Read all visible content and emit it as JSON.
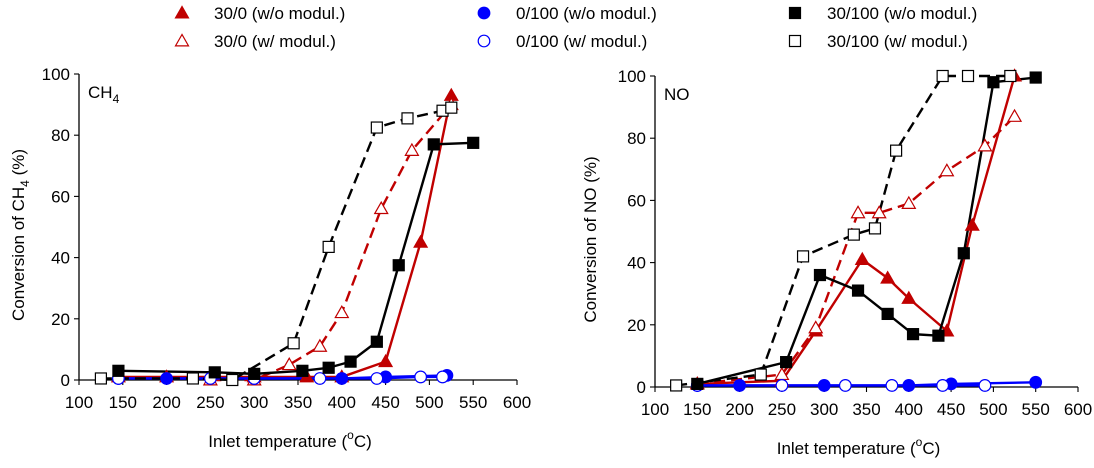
{
  "legend": {
    "items": [
      {
        "label": "30/0 (w/o modul.)",
        "marker": "triangle",
        "filled": true,
        "color": "#c00000"
      },
      {
        "label": "0/100 (w/o modul.)",
        "marker": "circle",
        "filled": true,
        "color": "#0000ff"
      },
      {
        "label": "30/100 (w/o modul.)",
        "marker": "square",
        "filled": true,
        "color": "#000000"
      },
      {
        "label": "30/0 (w/ modul.)",
        "marker": "triangle",
        "filled": false,
        "color": "#c00000"
      },
      {
        "label": "0/100 (w/ modul.)",
        "marker": "circle",
        "filled": false,
        "color": "#0000ff"
      },
      {
        "label": "30/100 (w/ modul.)",
        "marker": "square",
        "filled": false,
        "color": "#000000"
      }
    ]
  },
  "chart_data": [
    {
      "type": "line",
      "corner_label": {
        "main": "CH",
        "sub": "4"
      },
      "xlabel": {
        "main": "Inlet temperature (",
        "sup": "o",
        "tail": "C)"
      },
      "ylabel": {
        "main": "Conversion of CH",
        "sub": "4",
        "tail": " (%)"
      },
      "xlim": [
        100,
        600
      ],
      "ylim": [
        0,
        100
      ],
      "xticks": [
        "100",
        "150",
        "200",
        "250",
        "300",
        "350",
        "400",
        "450",
        "500",
        "550",
        "600"
      ],
      "yticks": [
        "0",
        "20",
        "40",
        "60",
        "80",
        "100"
      ],
      "grid": false,
      "series": [
        {
          "key": "a",
          "marker": "triangle",
          "filled": true,
          "color": "#c00000",
          "dashed": false,
          "x": [
            145,
            200,
            300,
            360,
            400,
            450,
            490,
            525
          ],
          "y": [
            1,
            1,
            1,
            1,
            1,
            6,
            45,
            93
          ]
        },
        {
          "key": "b",
          "marker": "triangle",
          "filled": false,
          "color": "#c00000",
          "dashed": true,
          "x": [
            250,
            300,
            340,
            375,
            400,
            445,
            480,
            525
          ],
          "y": [
            0,
            0,
            5,
            11,
            22,
            56,
            75,
            90
          ]
        },
        {
          "key": "c",
          "marker": "circle",
          "filled": true,
          "color": "#0000ff",
          "dashed": false,
          "x": [
            145,
            200,
            300,
            400,
            450,
            520
          ],
          "y": [
            0.5,
            0.5,
            0.5,
            0.5,
            1,
            1.5
          ]
        },
        {
          "key": "d",
          "marker": "circle",
          "filled": false,
          "color": "#0000ff",
          "dashed": false,
          "x": [
            145,
            250,
            300,
            375,
            440,
            490,
            515
          ],
          "y": [
            0.5,
            0.5,
            0.5,
            0.5,
            0.5,
            1,
            1
          ]
        },
        {
          "key": "e",
          "marker": "square",
          "filled": true,
          "color": "#000000",
          "dashed": false,
          "x": [
            145,
            255,
            300,
            355,
            385,
            410,
            440,
            465,
            505,
            550
          ],
          "y": [
            3,
            2.5,
            2,
            3,
            4,
            6,
            12.5,
            37.5,
            77,
            77.5
          ]
        },
        {
          "key": "f",
          "marker": "square",
          "filled": false,
          "color": "#000000",
          "dashed": true,
          "x": [
            125,
            230,
            275,
            345,
            385,
            440,
            475,
            515,
            525
          ],
          "y": [
            0.5,
            0.5,
            0,
            12,
            43.5,
            82.5,
            85.5,
            88,
            89
          ]
        }
      ]
    },
    {
      "type": "line",
      "corner_label": {
        "main": "NO",
        "sub": ""
      },
      "xlabel": {
        "main": "Inlet temperature (",
        "sup": "o",
        "tail": "C)"
      },
      "ylabel": {
        "main": "Conversion of NO (%)",
        "sub": "",
        "tail": ""
      },
      "xlim": [
        100,
        600
      ],
      "ylim": [
        0,
        100
      ],
      "xticks": [
        "100",
        "150",
        "200",
        "250",
        "300",
        "350",
        "400",
        "450",
        "500",
        "550",
        "600"
      ],
      "yticks": [
        "0",
        "20",
        "40",
        "60",
        "80",
        "100"
      ],
      "grid": false,
      "series": [
        {
          "key": "a",
          "marker": "triangle",
          "filled": true,
          "color": "#c00000",
          "dashed": false,
          "x": [
            150,
            250,
            290,
            345,
            375,
            400,
            445,
            475,
            525
          ],
          "y": [
            1,
            2,
            18,
            41,
            35,
            28.5,
            18,
            52,
            100
          ]
        },
        {
          "key": "b",
          "marker": "triangle",
          "filled": false,
          "color": "#c00000",
          "dashed": true,
          "x": [
            150,
            250,
            290,
            340,
            365,
            400,
            445,
            490,
            525
          ],
          "y": [
            1,
            4,
            19,
            56,
            56,
            59,
            69.5,
            77.5,
            87
          ]
        },
        {
          "key": "c",
          "marker": "circle",
          "filled": true,
          "color": "#0000ff",
          "dashed": false,
          "x": [
            150,
            200,
            300,
            400,
            450,
            550
          ],
          "y": [
            0.5,
            0.5,
            0.5,
            0.5,
            1,
            1.5
          ]
        },
        {
          "key": "d",
          "marker": "circle",
          "filled": false,
          "color": "#0000ff",
          "dashed": false,
          "x": [
            150,
            250,
            325,
            380,
            440,
            490
          ],
          "y": [
            0.5,
            0.5,
            0.5,
            0.5,
            0.5,
            0.5
          ]
        },
        {
          "key": "e",
          "marker": "square",
          "filled": true,
          "color": "#000000",
          "dashed": false,
          "x": [
            150,
            255,
            295,
            340,
            375,
            405,
            435,
            465,
            500,
            550
          ],
          "y": [
            1,
            8,
            36,
            31,
            23.5,
            17,
            16.5,
            43,
            98,
            99.5
          ]
        },
        {
          "key": "f",
          "marker": "square",
          "filled": false,
          "color": "#000000",
          "dashed": true,
          "x": [
            125,
            225,
            275,
            335,
            360,
            385,
            440,
            470,
            520
          ],
          "y": [
            0.5,
            4,
            42,
            49,
            51,
            76,
            100,
            100,
            100
          ]
        }
      ]
    }
  ]
}
